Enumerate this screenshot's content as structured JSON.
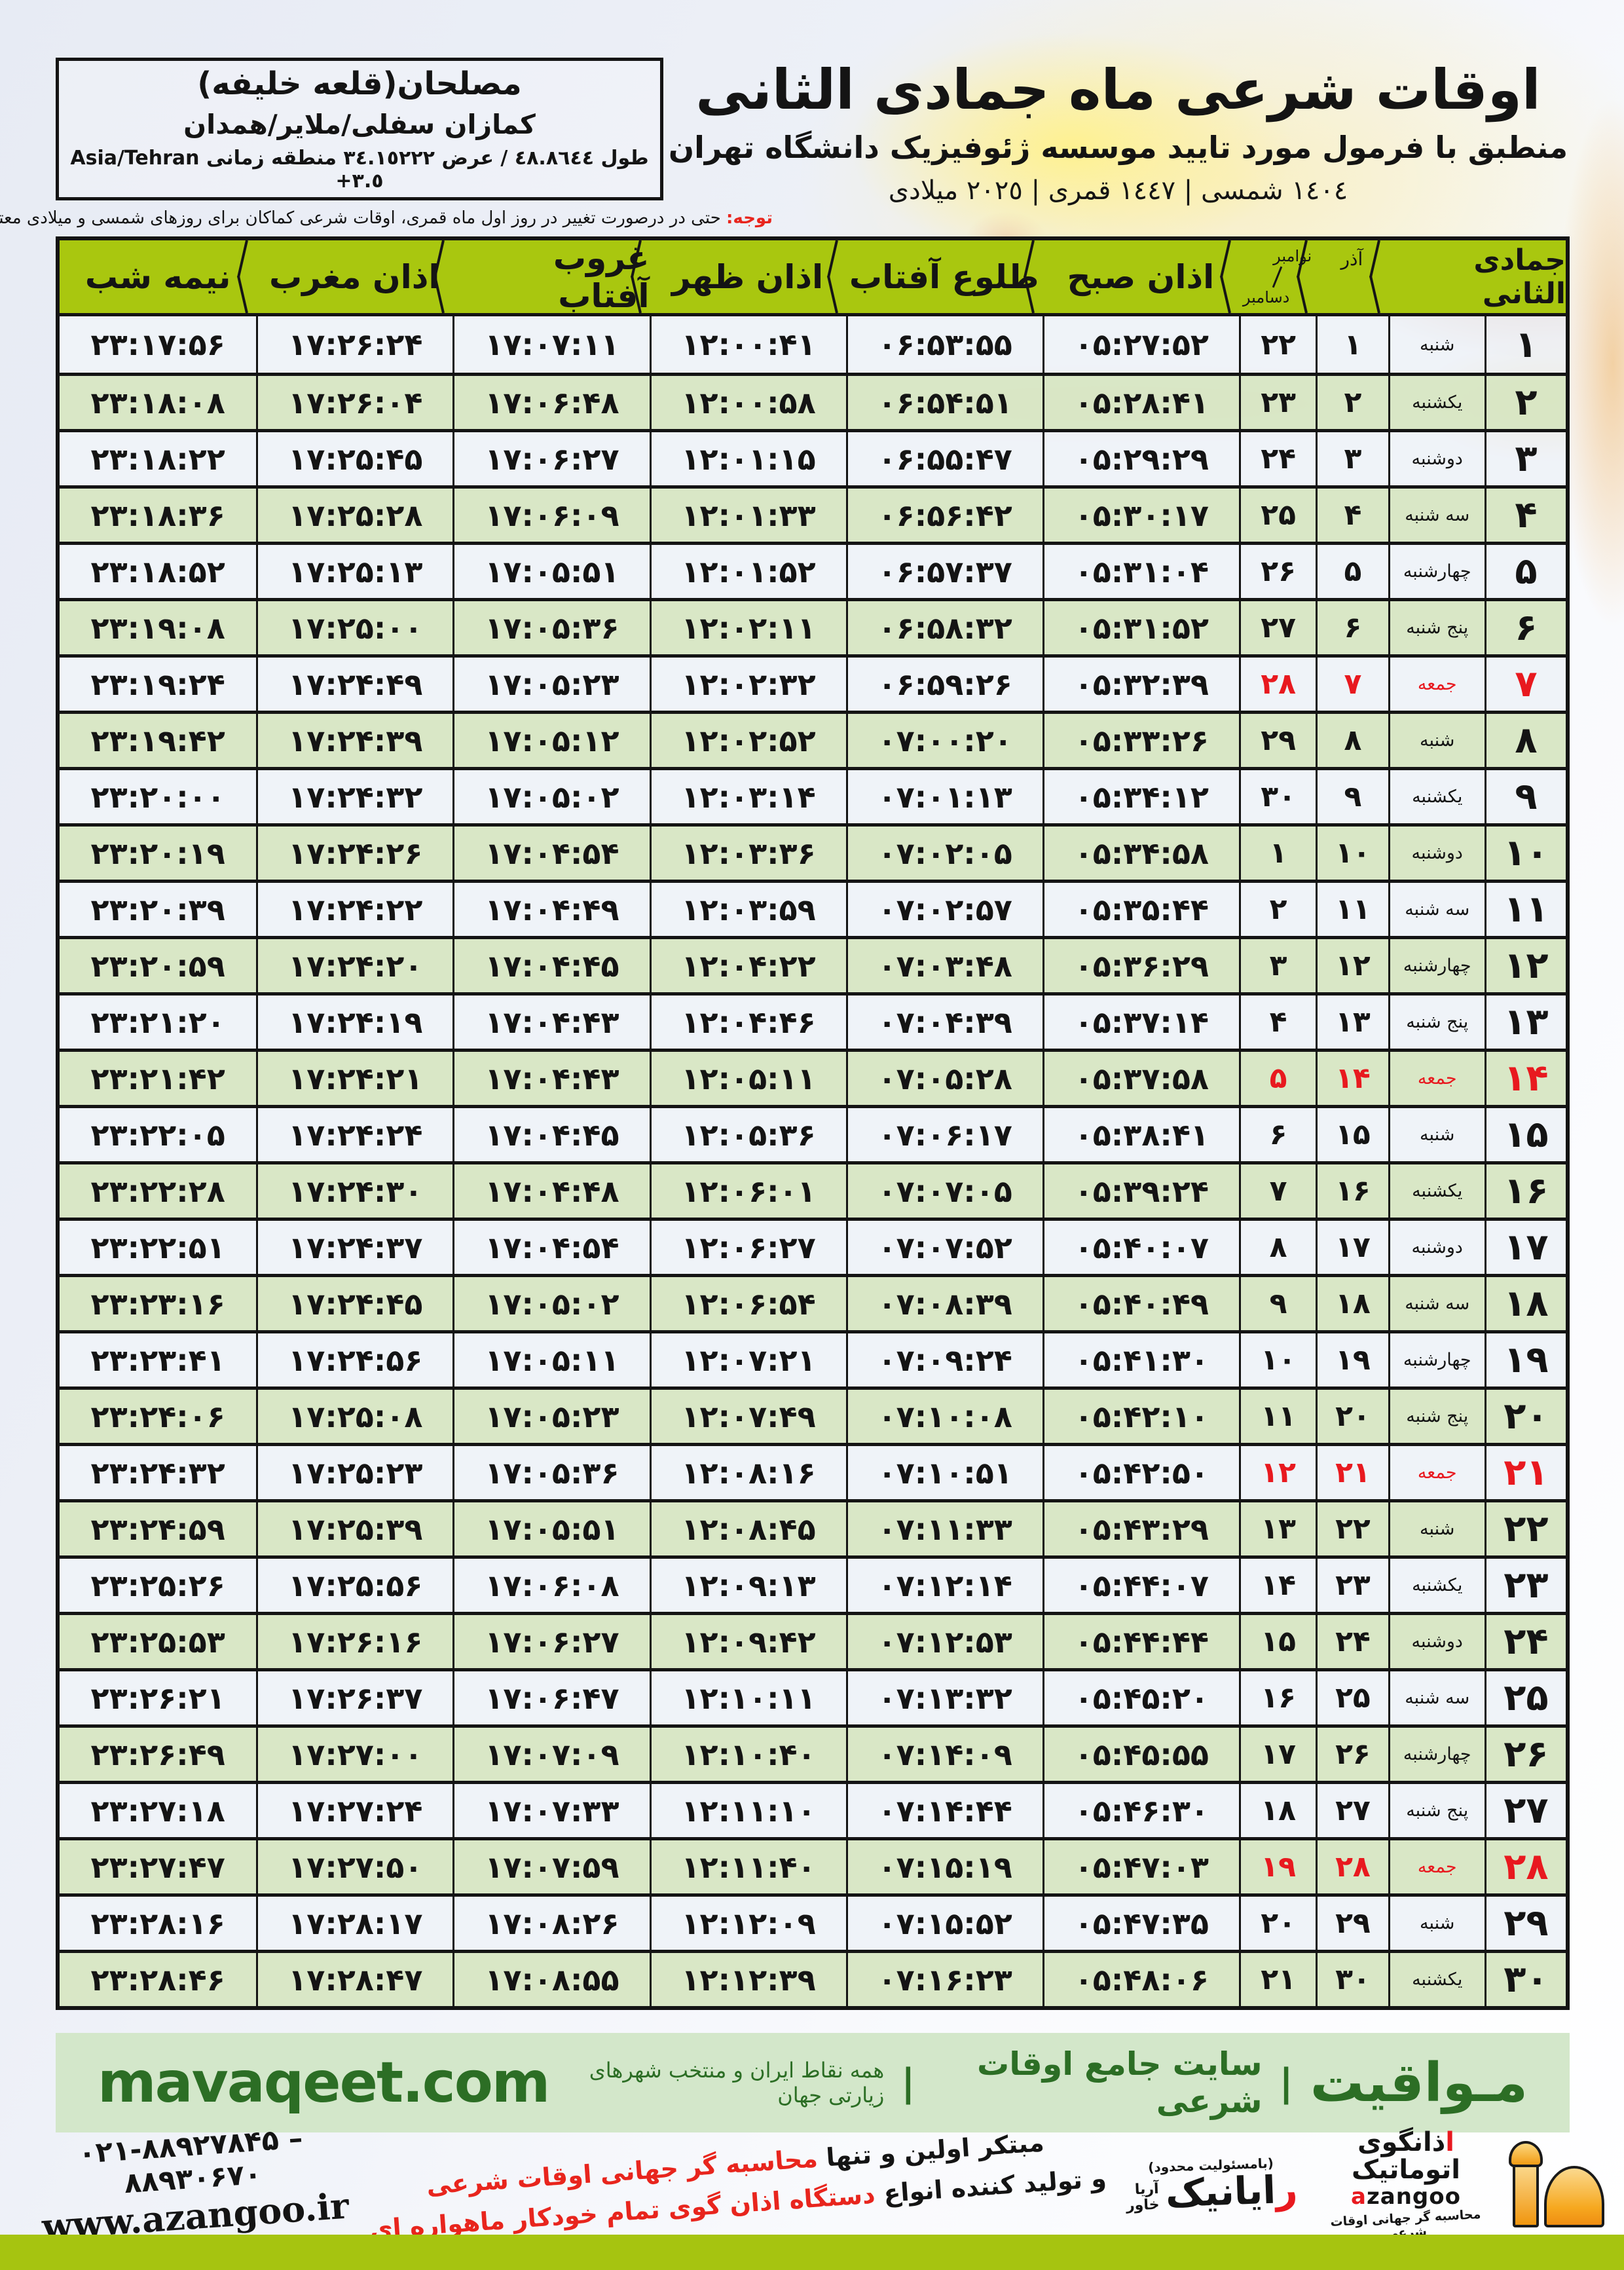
{
  "header": {
    "title": "اوقات شرعی ماه جمادی الثانی",
    "subtitle": "منطبق با فرمول مورد تایید موسسه ژئوفیزیک دانشگاه تهران",
    "dates": "١٤٠٤ شمسی | ١٤٤٧ قمری | ٢٠٢٥ میلادی"
  },
  "location": {
    "line1": "مصلحان(قلعه خلیفه)",
    "line2": "کمازان سفلی/ملایر/همدان",
    "coords": "طول ٤٨.٨٦٤٤ / عرض ٣٤.١٥٢٢٢ منطقه زمانی",
    "timezone": "Asia/Tehran +٣.٥"
  },
  "notice": {
    "label": "توجه:",
    "text": " حتی در درصورت تغییر در روز اول ماه قمری، اوقات شرعی کماکان برای روزهای شمسی و میلادی معتبر است."
  },
  "table": {
    "headers": {
      "month": "جمادی الثانی",
      "azar": "آذر",
      "november": "نوامبر",
      "december": "دسامبر",
      "fajr": "اذان صبح",
      "sunrise": "طلوع آفتاب",
      "dhuhr": "اذان ظهر",
      "sunset": "غروب آفتاب",
      "maghrib": "اذان مغرب",
      "midnight": "نیمه شب"
    },
    "rows": [
      {
        "d": "۱",
        "w": "شنبه",
        "a": "۱",
        "m": "۲۲",
        "fajr": "۰۵:۲۷:۵۲",
        "rise": "۰۶:۵۳:۵۵",
        "zohr": "۱۲:۰۰:۴۱",
        "set": "۱۷:۰۷:۱۱",
        "maghreb": "۱۷:۲۶:۲۴",
        "mid": "۲۳:۱۷:۵۶",
        "friday": false
      },
      {
        "d": "۲",
        "w": "یکشنبه",
        "a": "۲",
        "m": "۲۳",
        "fajr": "۰۵:۲۸:۴۱",
        "rise": "۰۶:۵۴:۵۱",
        "zohr": "۱۲:۰۰:۵۸",
        "set": "۱۷:۰۶:۴۸",
        "maghreb": "۱۷:۲۶:۰۴",
        "mid": "۲۳:۱۸:۰۸",
        "friday": false
      },
      {
        "d": "۳",
        "w": "دوشنبه",
        "a": "۳",
        "m": "۲۴",
        "fajr": "۰۵:۲۹:۲۹",
        "rise": "۰۶:۵۵:۴۷",
        "zohr": "۱۲:۰۱:۱۵",
        "set": "۱۷:۰۶:۲۷",
        "maghreb": "۱۷:۲۵:۴۵",
        "mid": "۲۳:۱۸:۲۲",
        "friday": false
      },
      {
        "d": "۴",
        "w": "سه شنبه",
        "a": "۴",
        "m": "۲۵",
        "fajr": "۰۵:۳۰:۱۷",
        "rise": "۰۶:۵۶:۴۲",
        "zohr": "۱۲:۰۱:۳۳",
        "set": "۱۷:۰۶:۰۹",
        "maghreb": "۱۷:۲۵:۲۸",
        "mid": "۲۳:۱۸:۳۶",
        "friday": false
      },
      {
        "d": "۵",
        "w": "چهارشنبه",
        "a": "۵",
        "m": "۲۶",
        "fajr": "۰۵:۳۱:۰۴",
        "rise": "۰۶:۵۷:۳۷",
        "zohr": "۱۲:۰۱:۵۲",
        "set": "۱۷:۰۵:۵۱",
        "maghreb": "۱۷:۲۵:۱۳",
        "mid": "۲۳:۱۸:۵۲",
        "friday": false
      },
      {
        "d": "۶",
        "w": "پنج شنبه",
        "a": "۶",
        "m": "۲۷",
        "fajr": "۰۵:۳۱:۵۲",
        "rise": "۰۶:۵۸:۳۲",
        "zohr": "۱۲:۰۲:۱۱",
        "set": "۱۷:۰۵:۳۶",
        "maghreb": "۱۷:۲۵:۰۰",
        "mid": "۲۳:۱۹:۰۸",
        "friday": false
      },
      {
        "d": "۷",
        "w": "جمعه",
        "a": "۷",
        "m": "۲۸",
        "fajr": "۰۵:۳۲:۳۹",
        "rise": "۰۶:۵۹:۲۶",
        "zohr": "۱۲:۰۲:۳۲",
        "set": "۱۷:۰۵:۲۳",
        "maghreb": "۱۷:۲۴:۴۹",
        "mid": "۲۳:۱۹:۲۴",
        "friday": true
      },
      {
        "d": "۸",
        "w": "شنبه",
        "a": "۸",
        "m": "۲۹",
        "fajr": "۰۵:۳۳:۲۶",
        "rise": "۰۷:۰۰:۲۰",
        "zohr": "۱۲:۰۲:۵۲",
        "set": "۱۷:۰۵:۱۲",
        "maghreb": "۱۷:۲۴:۳۹",
        "mid": "۲۳:۱۹:۴۲",
        "friday": false
      },
      {
        "d": "۹",
        "w": "یکشنبه",
        "a": "۹",
        "m": "۳۰",
        "fajr": "۰۵:۳۴:۱۲",
        "rise": "۰۷:۰۱:۱۳",
        "zohr": "۱۲:۰۳:۱۴",
        "set": "۱۷:۰۵:۰۲",
        "maghreb": "۱۷:۲۴:۳۲",
        "mid": "۲۳:۲۰:۰۰",
        "friday": false
      },
      {
        "d": "۱۰",
        "w": "دوشنبه",
        "a": "۱۰",
        "m": "۱",
        "fajr": "۰۵:۳۴:۵۸",
        "rise": "۰۷:۰۲:۰۵",
        "zohr": "۱۲:۰۳:۳۶",
        "set": "۱۷:۰۴:۵۴",
        "maghreb": "۱۷:۲۴:۲۶",
        "mid": "۲۳:۲۰:۱۹",
        "friday": false
      },
      {
        "d": "۱۱",
        "w": "سه شنبه",
        "a": "۱۱",
        "m": "۲",
        "fajr": "۰۵:۳۵:۴۴",
        "rise": "۰۷:۰۲:۵۷",
        "zohr": "۱۲:۰۳:۵۹",
        "set": "۱۷:۰۴:۴۹",
        "maghreb": "۱۷:۲۴:۲۲",
        "mid": "۲۳:۲۰:۳۹",
        "friday": false
      },
      {
        "d": "۱۲",
        "w": "چهارشنبه",
        "a": "۱۲",
        "m": "۳",
        "fajr": "۰۵:۳۶:۲۹",
        "rise": "۰۷:۰۳:۴۸",
        "zohr": "۱۲:۰۴:۲۲",
        "set": "۱۷:۰۴:۴۵",
        "maghreb": "۱۷:۲۴:۲۰",
        "mid": "۲۳:۲۰:۵۹",
        "friday": false
      },
      {
        "d": "۱۳",
        "w": "پنج شنبه",
        "a": "۱۳",
        "m": "۴",
        "fajr": "۰۵:۳۷:۱۴",
        "rise": "۰۷:۰۴:۳۹",
        "zohr": "۱۲:۰۴:۴۶",
        "set": "۱۷:۰۴:۴۳",
        "maghreb": "۱۷:۲۴:۱۹",
        "mid": "۲۳:۲۱:۲۰",
        "friday": false
      },
      {
        "d": "۱۴",
        "w": "جمعه",
        "a": "۱۴",
        "m": "۵",
        "fajr": "۰۵:۳۷:۵۸",
        "rise": "۰۷:۰۵:۲۸",
        "zohr": "۱۲:۰۵:۱۱",
        "set": "۱۷:۰۴:۴۳",
        "maghreb": "۱۷:۲۴:۲۱",
        "mid": "۲۳:۲۱:۴۲",
        "friday": true
      },
      {
        "d": "۱۵",
        "w": "شنبه",
        "a": "۱۵",
        "m": "۶",
        "fajr": "۰۵:۳۸:۴۱",
        "rise": "۰۷:۰۶:۱۷",
        "zohr": "۱۲:۰۵:۳۶",
        "set": "۱۷:۰۴:۴۵",
        "maghreb": "۱۷:۲۴:۲۴",
        "mid": "۲۳:۲۲:۰۵",
        "friday": false
      },
      {
        "d": "۱۶",
        "w": "یکشنبه",
        "a": "۱۶",
        "m": "۷",
        "fajr": "۰۵:۳۹:۲۴",
        "rise": "۰۷:۰۷:۰۵",
        "zohr": "۱۲:۰۶:۰۱",
        "set": "۱۷:۰۴:۴۸",
        "maghreb": "۱۷:۲۴:۳۰",
        "mid": "۲۳:۲۲:۲۸",
        "friday": false
      },
      {
        "d": "۱۷",
        "w": "دوشنبه",
        "a": "۱۷",
        "m": "۸",
        "fajr": "۰۵:۴۰:۰۷",
        "rise": "۰۷:۰۷:۵۲",
        "zohr": "۱۲:۰۶:۲۷",
        "set": "۱۷:۰۴:۵۴",
        "maghreb": "۱۷:۲۴:۳۷",
        "mid": "۲۳:۲۲:۵۱",
        "friday": false
      },
      {
        "d": "۱۸",
        "w": "سه شنبه",
        "a": "۱۸",
        "m": "۹",
        "fajr": "۰۵:۴۰:۴۹",
        "rise": "۰۷:۰۸:۳۹",
        "zohr": "۱۲:۰۶:۵۴",
        "set": "۱۷:۰۵:۰۲",
        "maghreb": "۱۷:۲۴:۴۵",
        "mid": "۲۳:۲۳:۱۶",
        "friday": false
      },
      {
        "d": "۱۹",
        "w": "چهارشنبه",
        "a": "۱۹",
        "m": "۱۰",
        "fajr": "۰۵:۴۱:۳۰",
        "rise": "۰۷:۰۹:۲۴",
        "zohr": "۱۲:۰۷:۲۱",
        "set": "۱۷:۰۵:۱۱",
        "maghreb": "۱۷:۲۴:۵۶",
        "mid": "۲۳:۲۳:۴۱",
        "friday": false
      },
      {
        "d": "۲۰",
        "w": "پنج شنبه",
        "a": "۲۰",
        "m": "۱۱",
        "fajr": "۰۵:۴۲:۱۰",
        "rise": "۰۷:۱۰:۰۸",
        "zohr": "۱۲:۰۷:۴۹",
        "set": "۱۷:۰۵:۲۳",
        "maghreb": "۱۷:۲۵:۰۸",
        "mid": "۲۳:۲۴:۰۶",
        "friday": false
      },
      {
        "d": "۲۱",
        "w": "جمعه",
        "a": "۲۱",
        "m": "۱۲",
        "fajr": "۰۵:۴۲:۵۰",
        "rise": "۰۷:۱۰:۵۱",
        "zohr": "۱۲:۰۸:۱۶",
        "set": "۱۷:۰۵:۳۶",
        "maghreb": "۱۷:۲۵:۲۳",
        "mid": "۲۳:۲۴:۳۲",
        "friday": true
      },
      {
        "d": "۲۲",
        "w": "شنبه",
        "a": "۲۲",
        "m": "۱۳",
        "fajr": "۰۵:۴۳:۲۹",
        "rise": "۰۷:۱۱:۳۳",
        "zohr": "۱۲:۰۸:۴۵",
        "set": "۱۷:۰۵:۵۱",
        "maghreb": "۱۷:۲۵:۳۹",
        "mid": "۲۳:۲۴:۵۹",
        "friday": false
      },
      {
        "d": "۲۳",
        "w": "یکشنبه",
        "a": "۲۳",
        "m": "۱۴",
        "fajr": "۰۵:۴۴:۰۷",
        "rise": "۰۷:۱۲:۱۴",
        "zohr": "۱۲:۰۹:۱۳",
        "set": "۱۷:۰۶:۰۸",
        "maghreb": "۱۷:۲۵:۵۶",
        "mid": "۲۳:۲۵:۲۶",
        "friday": false
      },
      {
        "d": "۲۴",
        "w": "دوشنبه",
        "a": "۲۴",
        "m": "۱۵",
        "fajr": "۰۵:۴۴:۴۴",
        "rise": "۰۷:۱۲:۵۳",
        "zohr": "۱۲:۰۹:۴۲",
        "set": "۱۷:۰۶:۲۷",
        "maghreb": "۱۷:۲۶:۱۶",
        "mid": "۲۳:۲۵:۵۳",
        "friday": false
      },
      {
        "d": "۲۵",
        "w": "سه شنبه",
        "a": "۲۵",
        "m": "۱۶",
        "fajr": "۰۵:۴۵:۲۰",
        "rise": "۰۷:۱۳:۳۲",
        "zohr": "۱۲:۱۰:۱۱",
        "set": "۱۷:۰۶:۴۷",
        "maghreb": "۱۷:۲۶:۳۷",
        "mid": "۲۳:۲۶:۲۱",
        "friday": false
      },
      {
        "d": "۲۶",
        "w": "چهارشنبه",
        "a": "۲۶",
        "m": "۱۷",
        "fajr": "۰۵:۴۵:۵۵",
        "rise": "۰۷:۱۴:۰۹",
        "zohr": "۱۲:۱۰:۴۰",
        "set": "۱۷:۰۷:۰۹",
        "maghreb": "۱۷:۲۷:۰۰",
        "mid": "۲۳:۲۶:۴۹",
        "friday": false
      },
      {
        "d": "۲۷",
        "w": "پنج شنبه",
        "a": "۲۷",
        "m": "۱۸",
        "fajr": "۰۵:۴۶:۳۰",
        "rise": "۰۷:۱۴:۴۴",
        "zohr": "۱۲:۱۱:۱۰",
        "set": "۱۷:۰۷:۳۳",
        "maghreb": "۱۷:۲۷:۲۴",
        "mid": "۲۳:۲۷:۱۸",
        "friday": false
      },
      {
        "d": "۲۸",
        "w": "جمعه",
        "a": "۲۸",
        "m": "۱۹",
        "fajr": "۰۵:۴۷:۰۳",
        "rise": "۰۷:۱۵:۱۹",
        "zohr": "۱۲:۱۱:۴۰",
        "set": "۱۷:۰۷:۵۹",
        "maghreb": "۱۷:۲۷:۵۰",
        "mid": "۲۳:۲۷:۴۷",
        "friday": true
      },
      {
        "d": "۲۹",
        "w": "شنبه",
        "a": "۲۹",
        "m": "۲۰",
        "fajr": "۰۵:۴۷:۳۵",
        "rise": "۰۷:۱۵:۵۲",
        "zohr": "۱۲:۱۲:۰۹",
        "set": "۱۷:۰۸:۲۶",
        "maghreb": "۱۷:۲۸:۱۷",
        "mid": "۲۳:۲۸:۱۶",
        "friday": false
      },
      {
        "d": "۳۰",
        "w": "یکشنبه",
        "a": "۳۰",
        "m": "۲۱",
        "fajr": "۰۵:۴۸:۰۶",
        "rise": "۰۷:۱۶:۲۳",
        "zohr": "۱۲:۱۲:۳۹",
        "set": "۱۷:۰۸:۵۵",
        "maghreb": "۱۷:۲۸:۴۷",
        "mid": "۲۳:۲۸:۴۶",
        "friday": false
      }
    ]
  },
  "footer": {
    "brand": "مـواقیت",
    "divider": "|",
    "site_desc": "سایت جامع اوقات شرعی",
    "coverage": "همه نقاط ایران و منتخب شهرهای زیارتی جهان",
    "domain": "mavaqeet.com"
  },
  "bottom": {
    "phone": "۰۲۱-۸۸۹۲۷۸۴۵ – ۸۸۹۳۰۶۷۰",
    "website": "www.azangoo.ir",
    "promo_line1_black": "مبتکر اولین و تنها ",
    "promo_line1_red": "محاسبه گر جهانی اوقات شرعی",
    "promo_line2_black": "و تولید کننده انواع ",
    "promo_line2_red": "دستگاه اذان گوی تمام خودکار ماهواره ای",
    "rayanik_top": "(بامسئولیت محدود)",
    "rayanik_name_red": "ر",
    "rayanik_name_rest": "ایانیک",
    "rayanik_side1": "آریا",
    "rayanik_side2": "خاور",
    "azangoo_title_red": "ا",
    "azangoo_title_rest": "ذانگوی اتوماتیک",
    "azangoo_latin_red": "a",
    "azangoo_latin_rest": "zangoo",
    "azangoo_sub": "محاسبه گر جهانی اوقات شرعی"
  },
  "colors": {
    "header_green": "#a9c70f",
    "row_green": "#d7e6c4",
    "row_light": "#eef1f7",
    "friday_red": "#e8191f",
    "notice_red": "#e8251d",
    "footer_bar_bg": "#d3e7ca",
    "footer_text_green": "#2c6e25",
    "bottom_bar_green": "#a6c410",
    "logo_orange": "#f6a81f"
  }
}
